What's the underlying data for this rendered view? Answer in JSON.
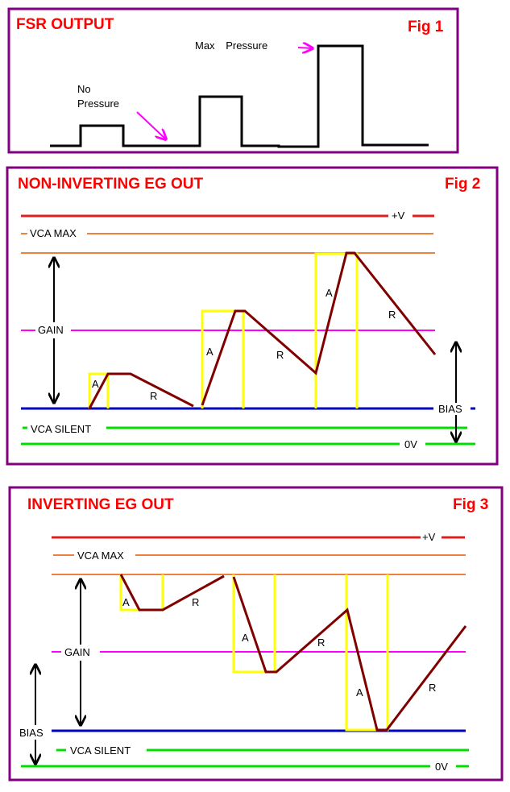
{
  "colors": {
    "frame": "#800080",
    "title": "#ff0000",
    "plus_v": "#e02020",
    "vca_max": "#f08040",
    "gain": "#ff00ff",
    "bias": "#0000c0",
    "vca_silent": "#00dd00",
    "zero_v": "#00dd00",
    "gate": "#ffff00",
    "envelope": "#800000",
    "annotation_arrow": "#ff00ff"
  },
  "fig1": {
    "title": "FSR OUTPUT",
    "fig_label": "Fig 1",
    "label_max_line1": "Max",
    "label_max_line2": "Pressure",
    "label_no_line1": "No",
    "label_no_line2": "Pressure"
  },
  "fig2": {
    "title": "NON-INVERTING EG OUT",
    "fig_label": "Fig 2",
    "plus_v": "+V",
    "vca_max": "VCA MAX",
    "gain": "GAIN",
    "bias": "BIAS",
    "vca_silent": "VCA SILENT",
    "zero_v": "0V",
    "attack": "A",
    "release": "R"
  },
  "fig3": {
    "title": "INVERTING EG OUT",
    "fig_label": "Fig 3",
    "plus_v": "+V",
    "vca_max": "VCA MAX",
    "gain": "GAIN",
    "bias": "BIAS",
    "vca_silent": "VCA SILENT",
    "zero_v": "0V",
    "attack": "A",
    "release": "R"
  }
}
